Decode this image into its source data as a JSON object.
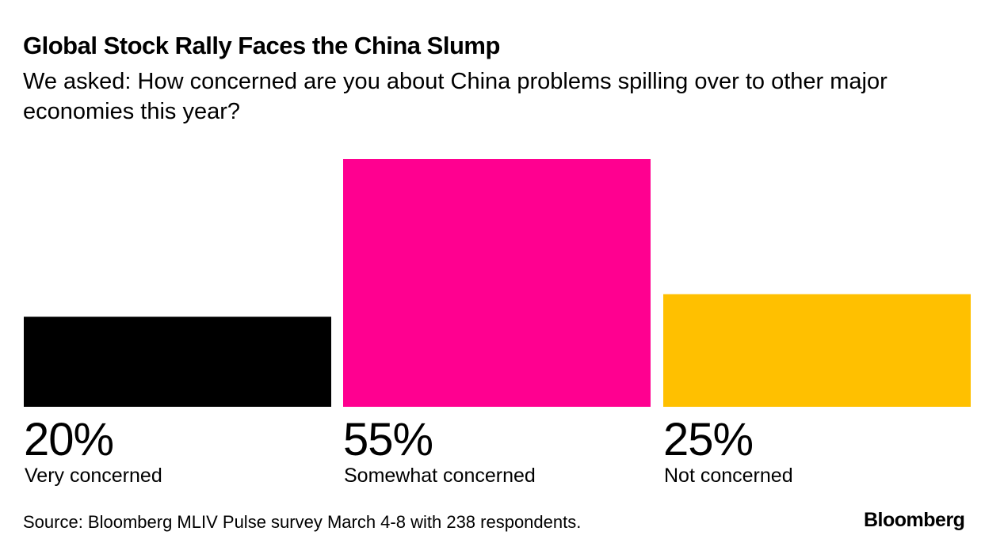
{
  "chart_data": {
    "type": "bar",
    "title": "Global Stock Rally Faces the China Slump",
    "subtitle": "We asked: How concerned are you about China problems spilling over to other major economies this year?",
    "categories": [
      "Very concerned",
      "Somewhat concerned",
      "Not concerned"
    ],
    "values": [
      20,
      55,
      25
    ],
    "value_labels": [
      "20%",
      "55%",
      "25%"
    ],
    "colors": [
      "#000000",
      "#ff0090",
      "#ffc000"
    ],
    "ylim": [
      0,
      55
    ],
    "grid": false,
    "xlabel": "",
    "ylabel": ""
  },
  "footer": {
    "source": "Source: Bloomberg MLIV Pulse survey March 4-8 with 238 respondents.",
    "logo": "Bloomberg"
  }
}
